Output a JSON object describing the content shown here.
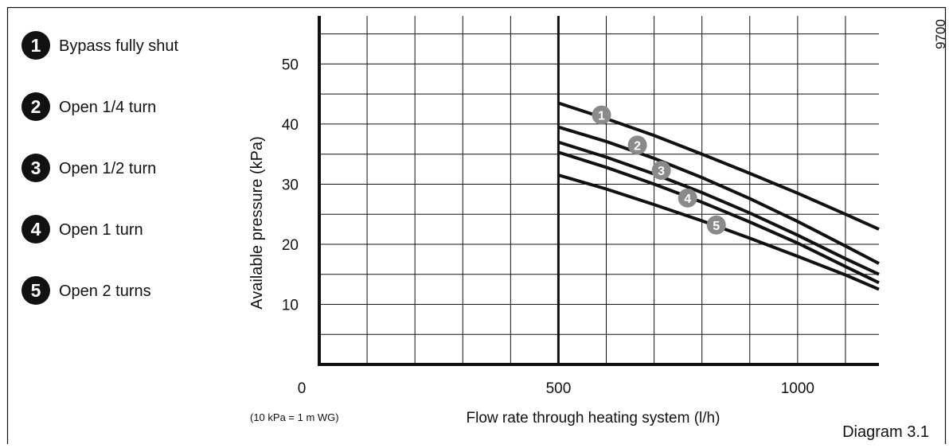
{
  "figure_code": "9700",
  "caption": "Diagram 3.1",
  "note": "(10 kPa = 1 m WG)",
  "legend": [
    {
      "number": "1",
      "label": "Bypass fully shut"
    },
    {
      "number": "2",
      "label": "Open 1/4 turn"
    },
    {
      "number": "3",
      "label": "Open 1/2 turn"
    },
    {
      "number": "4",
      "label": "Open 1 turn"
    },
    {
      "number": "5",
      "label": "Open 2 turns"
    }
  ],
  "colors": {
    "line": "#111111",
    "badge": "#8a8a8a",
    "legend_badge": "#111111",
    "grid": "#111111"
  },
  "chart_data": {
    "type": "line",
    "xlabel": "Flow rate through heating system (l/h)",
    "ylabel": "Available pressure (kPa)",
    "xlim": [
      0,
      1170
    ],
    "ylim": [
      0,
      58
    ],
    "x_ticks": [
      0,
      500,
      1000
    ],
    "y_ticks": [
      10,
      20,
      30,
      40,
      50
    ],
    "x_grid_step": 100,
    "y_grid_step": 5,
    "grid": true,
    "series": [
      {
        "name": "1",
        "x": [
          500,
          600,
          700,
          800,
          900,
          1000,
          1100,
          1170
        ],
        "y": [
          43.5,
          40.9,
          38.1,
          35.0,
          31.8,
          28.5,
          25.0,
          22.5
        ]
      },
      {
        "name": "2",
        "x": [
          500,
          600,
          700,
          800,
          900,
          1000,
          1100,
          1170
        ],
        "y": [
          39.5,
          37.1,
          34.3,
          31.1,
          27.6,
          23.8,
          19.7,
          16.8
        ]
      },
      {
        "name": "3",
        "x": [
          500,
          600,
          700,
          800,
          900,
          1000,
          1100,
          1170
        ],
        "y": [
          37.0,
          34.5,
          31.7,
          28.6,
          25.2,
          21.5,
          17.6,
          15.0
        ]
      },
      {
        "name": "4",
        "x": [
          500,
          600,
          700,
          800,
          900,
          1000,
          1100,
          1170
        ],
        "y": [
          35.3,
          32.8,
          30.0,
          27.0,
          23.7,
          20.2,
          16.3,
          13.6
        ]
      },
      {
        "name": "5",
        "x": [
          500,
          600,
          700,
          800,
          900,
          1000,
          1100,
          1170
        ],
        "y": [
          31.5,
          29.2,
          26.6,
          23.9,
          21.0,
          18.0,
          14.9,
          12.5
        ]
      }
    ],
    "series_labels": [
      {
        "series": "1",
        "x": 590,
        "y": 41.5
      },
      {
        "series": "2",
        "x": 665,
        "y": 36.5
      },
      {
        "series": "3",
        "x": 715,
        "y": 32.3
      },
      {
        "series": "4",
        "x": 770,
        "y": 27.7
      },
      {
        "series": "5",
        "x": 830,
        "y": 23.2
      }
    ]
  }
}
